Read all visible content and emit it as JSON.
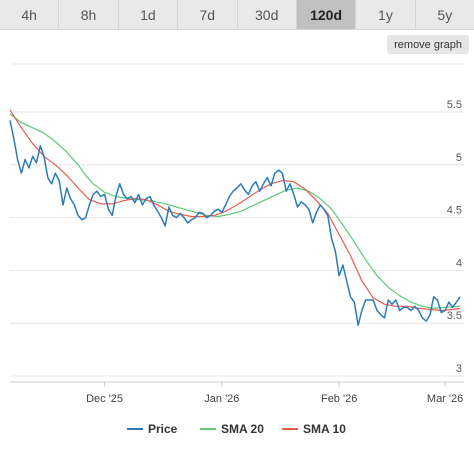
{
  "tabs": [
    {
      "label": "4h",
      "active": false
    },
    {
      "label": "8h",
      "active": false
    },
    {
      "label": "1d",
      "active": false
    },
    {
      "label": "7d",
      "active": false
    },
    {
      "label": "30d",
      "active": false
    },
    {
      "label": "120d",
      "active": true
    },
    {
      "label": "1y",
      "active": false
    },
    {
      "label": "5y",
      "active": false
    }
  ],
  "remove_graph_label": "remove graph",
  "chart_data": {
    "type": "line",
    "title": "",
    "xlabel": "",
    "ylabel": "",
    "ylim": [
      3,
      5.5
    ],
    "yticks": [
      3,
      3.5,
      4,
      4.5,
      5,
      5.5
    ],
    "ytick_labels": [
      "3",
      "3.5",
      "4",
      "4.5",
      "5",
      "5.5"
    ],
    "x_range": [
      0,
      120
    ],
    "x_tick_positions": [
      25,
      56,
      87,
      115
    ],
    "x_tick_labels": [
      "Dec '25",
      "Jan '26",
      "Feb '26",
      "Mar '26"
    ],
    "grid": true,
    "legend_position": "bottom",
    "series": [
      {
        "name": "Price",
        "color": "#2b7bba",
        "points": [
          [
            0,
            5.42
          ],
          [
            1,
            5.25
          ],
          [
            2,
            5.05
          ],
          [
            3,
            4.92
          ],
          [
            4,
            5.05
          ],
          [
            5,
            4.97
          ],
          [
            6,
            5.08
          ],
          [
            7,
            5.02
          ],
          [
            8,
            5.18
          ],
          [
            9,
            5.08
          ],
          [
            10,
            4.88
          ],
          [
            11,
            4.82
          ],
          [
            12,
            4.92
          ],
          [
            13,
            4.85
          ],
          [
            14,
            4.62
          ],
          [
            15,
            4.78
          ],
          [
            16,
            4.68
          ],
          [
            17,
            4.62
          ],
          [
            18,
            4.52
          ],
          [
            19,
            4.48
          ],
          [
            20,
            4.5
          ],
          [
            21,
            4.62
          ],
          [
            22,
            4.72
          ],
          [
            23,
            4.75
          ],
          [
            24,
            4.7
          ],
          [
            25,
            4.72
          ],
          [
            26,
            4.58
          ],
          [
            27,
            4.52
          ],
          [
            28,
            4.7
          ],
          [
            29,
            4.82
          ],
          [
            30,
            4.72
          ],
          [
            31,
            4.68
          ],
          [
            32,
            4.7
          ],
          [
            33,
            4.64
          ],
          [
            34,
            4.72
          ],
          [
            35,
            4.62
          ],
          [
            36,
            4.68
          ],
          [
            37,
            4.7
          ],
          [
            38,
            4.62
          ],
          [
            39,
            4.56
          ],
          [
            40,
            4.5
          ],
          [
            41,
            4.42
          ],
          [
            42,
            4.6
          ],
          [
            43,
            4.52
          ],
          [
            44,
            4.5
          ],
          [
            45,
            4.54
          ],
          [
            46,
            4.5
          ],
          [
            47,
            4.45
          ],
          [
            48,
            4.48
          ],
          [
            49,
            4.5
          ],
          [
            50,
            4.55
          ],
          [
            51,
            4.54
          ],
          [
            52,
            4.5
          ],
          [
            53,
            4.52
          ],
          [
            54,
            4.56
          ],
          [
            55,
            4.58
          ],
          [
            56,
            4.55
          ],
          [
            57,
            4.62
          ],
          [
            58,
            4.7
          ],
          [
            59,
            4.75
          ],
          [
            60,
            4.78
          ],
          [
            61,
            4.82
          ],
          [
            62,
            4.76
          ],
          [
            63,
            4.72
          ],
          [
            64,
            4.8
          ],
          [
            65,
            4.84
          ],
          [
            66,
            4.75
          ],
          [
            67,
            4.82
          ],
          [
            68,
            4.88
          ],
          [
            69,
            4.8
          ],
          [
            70,
            4.92
          ],
          [
            71,
            4.95
          ],
          [
            72,
            4.92
          ],
          [
            73,
            4.75
          ],
          [
            74,
            4.82
          ],
          [
            75,
            4.72
          ],
          [
            76,
            4.6
          ],
          [
            77,
            4.65
          ],
          [
            78,
            4.62
          ],
          [
            79,
            4.58
          ],
          [
            80,
            4.45
          ],
          [
            81,
            4.55
          ],
          [
            82,
            4.62
          ],
          [
            83,
            4.58
          ],
          [
            84,
            4.52
          ],
          [
            85,
            4.3
          ],
          [
            86,
            4.18
          ],
          [
            87,
            3.95
          ],
          [
            88,
            4.05
          ],
          [
            89,
            3.9
          ],
          [
            90,
            3.75
          ],
          [
            91,
            3.7
          ],
          [
            92,
            3.48
          ],
          [
            93,
            3.62
          ],
          [
            94,
            3.72
          ],
          [
            95,
            3.72
          ],
          [
            96,
            3.72
          ],
          [
            97,
            3.62
          ],
          [
            98,
            3.58
          ],
          [
            99,
            3.55
          ],
          [
            100,
            3.72
          ],
          [
            101,
            3.68
          ],
          [
            102,
            3.72
          ],
          [
            103,
            3.62
          ],
          [
            104,
            3.65
          ],
          [
            105,
            3.65
          ],
          [
            106,
            3.62
          ],
          [
            107,
            3.66
          ],
          [
            108,
            3.62
          ],
          [
            109,
            3.55
          ],
          [
            110,
            3.52
          ],
          [
            111,
            3.58
          ],
          [
            112,
            3.75
          ],
          [
            113,
            3.72
          ],
          [
            114,
            3.6
          ],
          [
            115,
            3.62
          ],
          [
            116,
            3.7
          ],
          [
            117,
            3.65
          ],
          [
            118,
            3.7
          ],
          [
            119,
            3.75
          ]
        ]
      },
      {
        "name": "SMA 20",
        "color": "#5cc97a",
        "points": [
          [
            0,
            5.48
          ],
          [
            3,
            5.4
          ],
          [
            6,
            5.35
          ],
          [
            9,
            5.3
          ],
          [
            12,
            5.22
          ],
          [
            15,
            5.12
          ],
          [
            18,
            5.0
          ],
          [
            20,
            4.9
          ],
          [
            22,
            4.82
          ],
          [
            25,
            4.74
          ],
          [
            28,
            4.7
          ],
          [
            31,
            4.68
          ],
          [
            34,
            4.67
          ],
          [
            37,
            4.66
          ],
          [
            40,
            4.64
          ],
          [
            43,
            4.61
          ],
          [
            46,
            4.58
          ],
          [
            49,
            4.55
          ],
          [
            52,
            4.52
          ],
          [
            55,
            4.51
          ],
          [
            58,
            4.53
          ],
          [
            61,
            4.56
          ],
          [
            64,
            4.61
          ],
          [
            67,
            4.66
          ],
          [
            70,
            4.71
          ],
          [
            73,
            4.76
          ],
          [
            76,
            4.78
          ],
          [
            79,
            4.75
          ],
          [
            82,
            4.68
          ],
          [
            85,
            4.58
          ],
          [
            88,
            4.43
          ],
          [
            91,
            4.27
          ],
          [
            94,
            4.1
          ],
          [
            97,
            3.95
          ],
          [
            100,
            3.84
          ],
          [
            103,
            3.76
          ],
          [
            106,
            3.7
          ],
          [
            109,
            3.66
          ],
          [
            112,
            3.64
          ],
          [
            115,
            3.65
          ],
          [
            119,
            3.66
          ]
        ]
      },
      {
        "name": "SMA 10",
        "color": "#e85c4a",
        "points": [
          [
            0,
            5.52
          ],
          [
            3,
            5.35
          ],
          [
            6,
            5.2
          ],
          [
            9,
            5.08
          ],
          [
            12,
            5.0
          ],
          [
            15,
            4.9
          ],
          [
            18,
            4.78
          ],
          [
            21,
            4.67
          ],
          [
            24,
            4.63
          ],
          [
            27,
            4.63
          ],
          [
            30,
            4.66
          ],
          [
            33,
            4.68
          ],
          [
            36,
            4.67
          ],
          [
            39,
            4.62
          ],
          [
            42,
            4.56
          ],
          [
            45,
            4.53
          ],
          [
            48,
            4.51
          ],
          [
            51,
            4.51
          ],
          [
            54,
            4.52
          ],
          [
            57,
            4.56
          ],
          [
            60,
            4.62
          ],
          [
            63,
            4.69
          ],
          [
            66,
            4.76
          ],
          [
            69,
            4.82
          ],
          [
            72,
            4.85
          ],
          [
            75,
            4.84
          ],
          [
            78,
            4.77
          ],
          [
            81,
            4.66
          ],
          [
            84,
            4.54
          ],
          [
            87,
            4.34
          ],
          [
            90,
            4.14
          ],
          [
            93,
            3.9
          ],
          [
            96,
            3.74
          ],
          [
            99,
            3.68
          ],
          [
            102,
            3.66
          ],
          [
            105,
            3.66
          ],
          [
            108,
            3.64
          ],
          [
            111,
            3.63
          ],
          [
            114,
            3.62
          ],
          [
            117,
            3.63
          ],
          [
            119,
            3.64
          ]
        ]
      }
    ]
  }
}
